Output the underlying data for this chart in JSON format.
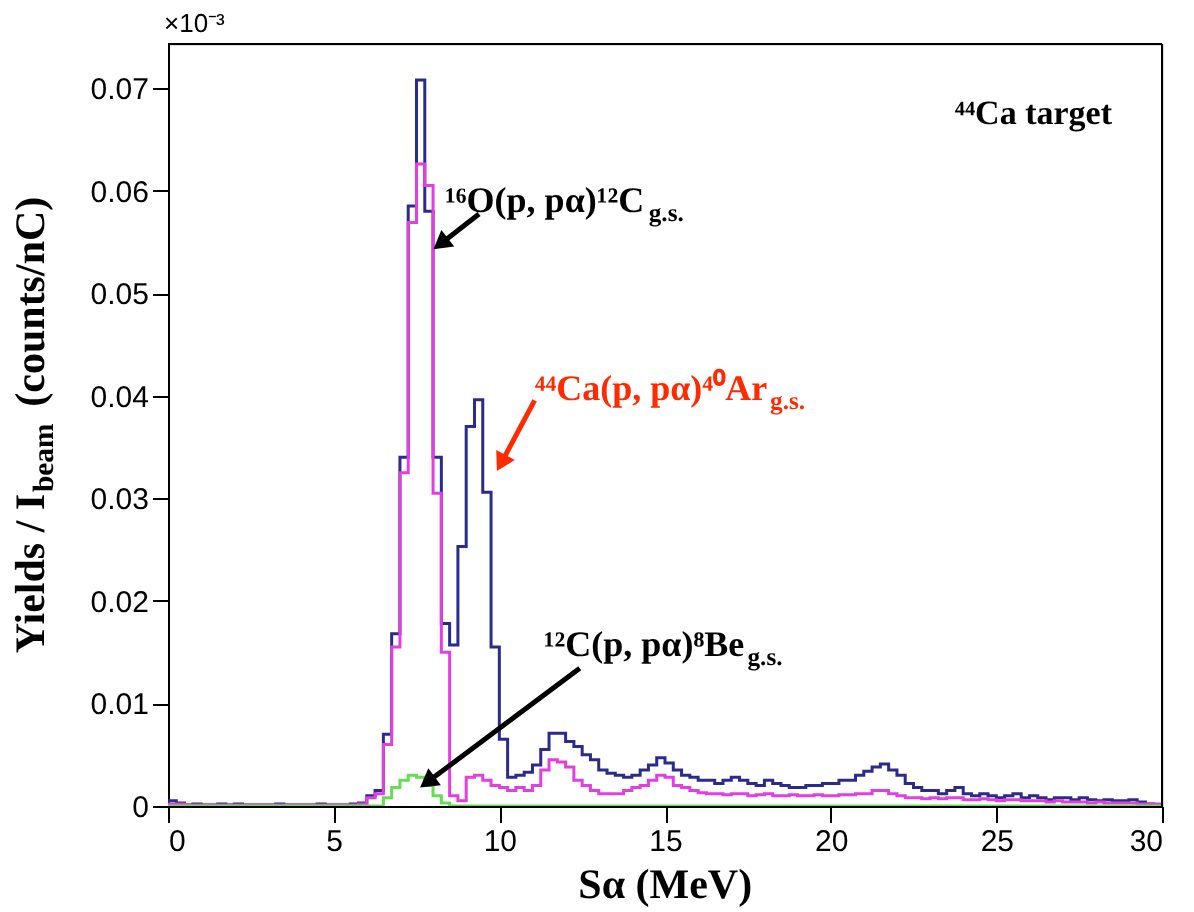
{
  "chart_data": {
    "type": "histogram",
    "xlabel": "Sα (MeV)",
    "ylabel": "Yields / I$_{beam}$ (counts/nC)",
    "bins": [
      0,
      0.25,
      0.5,
      0.75,
      1,
      1.25,
      1.5,
      1.75,
      2,
      2.25,
      2.5,
      2.75,
      3,
      3.25,
      3.5,
      3.75,
      4,
      4.25,
      4.5,
      4.75,
      5,
      5.25,
      5.5,
      5.75,
      6,
      6.25,
      6.5,
      6.75,
      7,
      7.25,
      7.5,
      7.75,
      8,
      8.25,
      8.5,
      8.75,
      9,
      9.25,
      9.5,
      9.75,
      10,
      10.25,
      10.5,
      10.75,
      11,
      11.25,
      11.5,
      11.75,
      12,
      12.25,
      12.5,
      12.75,
      13,
      13.25,
      13.5,
      13.75,
      14,
      14.25,
      14.5,
      14.75,
      15,
      15.25,
      15.5,
      15.75,
      16,
      16.25,
      16.5,
      16.75,
      17,
      17.25,
      17.5,
      17.75,
      18,
      18.25,
      18.5,
      18.75,
      19,
      19.25,
      19.5,
      19.75,
      20,
      20.25,
      20.5,
      20.75,
      21,
      21.25,
      21.5,
      21.75,
      22,
      22.25,
      22.5,
      22.75,
      23,
      23.25,
      23.5,
      23.75,
      24,
      24.25,
      24.5,
      24.75,
      25,
      25.25,
      25.5,
      25.75,
      26,
      26.25,
      26.5,
      26.75,
      27,
      27.25,
      27.5,
      27.75,
      28,
      28.25,
      28.5,
      28.75,
      29,
      29.25,
      29.5,
      29.75,
      30
    ],
    "series": [
      {
        "color": "#2b2b8c",
        "values": [
          0.0005,
          0.0003,
          0.0001,
          0.0002,
          0.0001,
          0.0001,
          0.0002,
          0.0001,
          0.0002,
          0.0001,
          0.0001,
          0.0001,
          0.0001,
          0.0002,
          0.0001,
          0.0001,
          0.0001,
          0.0001,
          0.0002,
          0.0001,
          0.0001,
          0.0001,
          0.0002,
          0.0003,
          0.001,
          0.0015,
          0.007,
          0.0168,
          0.034,
          0.0585,
          0.0708,
          0.058,
          0.034,
          0.0178,
          0.0157,
          0.0253,
          0.037,
          0.0396,
          0.0306,
          0.0155,
          0.0065,
          0.0028,
          0.003,
          0.0033,
          0.004,
          0.0055,
          0.0071,
          0.0071,
          0.0063,
          0.0058,
          0.005,
          0.0045,
          0.0035,
          0.0032,
          0.003,
          0.0028,
          0.003,
          0.0035,
          0.004,
          0.0047,
          0.0042,
          0.0035,
          0.003,
          0.0028,
          0.0025,
          0.0025,
          0.0022,
          0.0025,
          0.0028,
          0.0025,
          0.0022,
          0.002,
          0.0025,
          0.0022,
          0.002,
          0.0018,
          0.0018,
          0.002,
          0.002,
          0.0022,
          0.0022,
          0.0025,
          0.0025,
          0.003,
          0.0034,
          0.0038,
          0.0041,
          0.0035,
          0.003,
          0.0022,
          0.0018,
          0.0015,
          0.0015,
          0.0012,
          0.0015,
          0.0018,
          0.0012,
          0.001,
          0.0012,
          0.001,
          0.0008,
          0.001,
          0.0012,
          0.0008,
          0.001,
          0.0008,
          0.0006,
          0.0008,
          0.0008,
          0.0006,
          0.0008,
          0.0006,
          0.0005,
          0.0006,
          0.0005,
          0.0005,
          0.0006,
          0.0004,
          0.0002,
          0.0001
        ]
      },
      {
        "color": "#e040e0",
        "values": [
          0.0002,
          0.0002,
          0.0001,
          0.0001,
          0.0001,
          0.0001,
          0.0001,
          0.0001,
          0.0001,
          0.0001,
          0.0001,
          0.0001,
          0.0001,
          0.0001,
          0.0001,
          0.0001,
          0.0001,
          0.0001,
          0.0001,
          0.0001,
          0.0001,
          0.0001,
          0.0001,
          0.0002,
          0.0008,
          0.0012,
          0.006,
          0.0155,
          0.0325,
          0.0569,
          0.0626,
          0.0605,
          0.0305,
          0.015,
          0.001,
          0.0005,
          0.0028,
          0.003,
          0.0025,
          0.002,
          0.0018,
          0.0015,
          0.0018,
          0.0015,
          0.002,
          0.0035,
          0.0045,
          0.0043,
          0.0038,
          0.0025,
          0.002,
          0.0015,
          0.0012,
          0.0012,
          0.0012,
          0.0015,
          0.0018,
          0.002,
          0.0025,
          0.003,
          0.0028,
          0.002,
          0.0018,
          0.0015,
          0.0013,
          0.0012,
          0.0012,
          0.0011,
          0.0012,
          0.0012,
          0.001,
          0.0011,
          0.0012,
          0.001,
          0.001,
          0.0011,
          0.001,
          0.001,
          0.0011,
          0.001,
          0.001,
          0.0011,
          0.0011,
          0.0012,
          0.0012,
          0.0015,
          0.0015,
          0.0012,
          0.001,
          0.0008,
          0.0008,
          0.0007,
          0.0008,
          0.0007,
          0.0008,
          0.0008,
          0.0006,
          0.0006,
          0.0007,
          0.0006,
          0.0005,
          0.0006,
          0.0006,
          0.0005,
          0.0005,
          0.0005,
          0.0004,
          0.0005,
          0.0004,
          0.0004,
          0.0004,
          0.0003,
          0.0004,
          0.0003,
          0.0003,
          0.0003,
          0.0003,
          0.0002,
          0.0002,
          0.0002
        ]
      },
      {
        "color": "#66dd55",
        "values": [
          0,
          0,
          0,
          0,
          0,
          0,
          0,
          0,
          0,
          0,
          0,
          0,
          0,
          0,
          0,
          0,
          0,
          0,
          0,
          0,
          0,
          0,
          0,
          0,
          0,
          0,
          0.0008,
          0.0018,
          0.0025,
          0.003,
          0.0028,
          0.002,
          0.001,
          0.0003,
          0,
          0,
          0,
          0,
          0,
          0,
          0,
          0,
          0,
          0,
          0,
          0,
          0,
          0,
          0,
          0,
          0,
          0,
          0,
          0,
          0,
          0,
          0,
          0,
          0,
          0,
          0,
          0,
          0,
          0,
          0,
          0,
          0,
          0,
          0,
          0,
          0,
          0,
          0,
          0,
          0,
          0,
          0,
          0,
          0,
          0,
          0,
          0,
          0,
          0,
          0,
          0,
          0,
          0,
          0,
          0,
          0,
          0,
          0,
          0,
          0,
          0,
          0,
          0,
          0,
          0,
          0,
          0,
          0,
          0,
          0,
          0,
          0,
          0,
          0,
          0,
          0,
          0,
          0,
          0,
          0,
          0,
          0,
          0,
          0,
          0
        ]
      }
    ],
    "xlim": [
      0,
      30
    ],
    "xticks": [
      0,
      5,
      10,
      15,
      20,
      25,
      30
    ],
    "ylim": [
      0,
      0.0743
    ],
    "yticks": [
      0,
      0.01,
      0.02,
      0.03,
      0.04,
      0.05,
      0.06,
      0.07
    ],
    "grid": false,
    "annotations": [
      "×10⁻³",
      "⁴⁴Ca target",
      {
        "text": "¹⁶O(p, pα)¹²C$_{g.s.}$",
        "x": 8.3,
        "y": 0.055
      },
      {
        "text": "⁴⁴Ca(p, pα)⁴⁰Ar$_{g.s.}$",
        "x": 10.1,
        "y": 0.0337
      },
      {
        "text": "¹²C(p, pα)⁸Be$_{g.s.}$",
        "x": 7.9,
        "y": 0.0025
      }
    ]
  }
}
